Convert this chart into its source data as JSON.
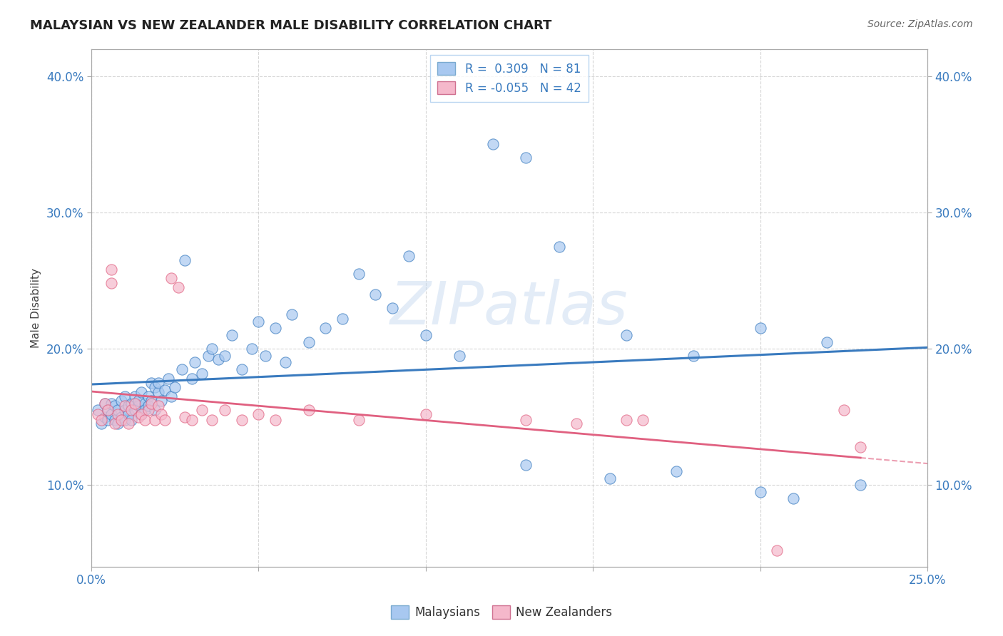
{
  "title": "MALAYSIAN VS NEW ZEALANDER MALE DISABILITY CORRELATION CHART",
  "source": "Source: ZipAtlas.com",
  "ylabel": "Male Disability",
  "xlim": [
    0.0,
    0.25
  ],
  "ylim": [
    0.04,
    0.42
  ],
  "ytick_values": [
    0.1,
    0.2,
    0.3,
    0.4
  ],
  "r_malaysian": 0.309,
  "n_malaysian": 81,
  "r_nz": -0.055,
  "n_nz": 42,
  "color_malaysian": "#a8c8f0",
  "color_nz": "#f5b8cb",
  "line_color_malaysian": "#3a7bbf",
  "line_color_nz": "#e06080",
  "background_color": "#ffffff",
  "watermark": "ZIPatlas",
  "malaysian_x": [
    0.002,
    0.003,
    0.004,
    0.004,
    0.005,
    0.005,
    0.006,
    0.006,
    0.007,
    0.007,
    0.008,
    0.008,
    0.009,
    0.009,
    0.01,
    0.01,
    0.01,
    0.011,
    0.011,
    0.012,
    0.012,
    0.013,
    0.013,
    0.014,
    0.014,
    0.015,
    0.015,
    0.016,
    0.016,
    0.017,
    0.017,
    0.018,
    0.018,
    0.019,
    0.019,
    0.02,
    0.02,
    0.021,
    0.022,
    0.023,
    0.024,
    0.025,
    0.027,
    0.028,
    0.03,
    0.031,
    0.033,
    0.035,
    0.036,
    0.038,
    0.04,
    0.042,
    0.045,
    0.048,
    0.05,
    0.052,
    0.055,
    0.058,
    0.06,
    0.065,
    0.07,
    0.075,
    0.08,
    0.085,
    0.09,
    0.095,
    0.1,
    0.11,
    0.12,
    0.13,
    0.14,
    0.16,
    0.18,
    0.2,
    0.22,
    0.2,
    0.21,
    0.23,
    0.13,
    0.155,
    0.175
  ],
  "malaysian_y": [
    0.155,
    0.145,
    0.16,
    0.15,
    0.155,
    0.148,
    0.152,
    0.16,
    0.148,
    0.158,
    0.145,
    0.155,
    0.162,
    0.15,
    0.155,
    0.148,
    0.165,
    0.158,
    0.152,
    0.16,
    0.148,
    0.165,
    0.155,
    0.158,
    0.162,
    0.152,
    0.168,
    0.16,
    0.155,
    0.165,
    0.158,
    0.175,
    0.162,
    0.172,
    0.155,
    0.168,
    0.175,
    0.162,
    0.17,
    0.178,
    0.165,
    0.172,
    0.185,
    0.265,
    0.178,
    0.19,
    0.182,
    0.195,
    0.2,
    0.192,
    0.195,
    0.21,
    0.185,
    0.2,
    0.22,
    0.195,
    0.215,
    0.19,
    0.225,
    0.205,
    0.215,
    0.222,
    0.255,
    0.24,
    0.23,
    0.268,
    0.21,
    0.195,
    0.35,
    0.34,
    0.275,
    0.21,
    0.195,
    0.215,
    0.205,
    0.095,
    0.09,
    0.1,
    0.115,
    0.105,
    0.11
  ],
  "nz_x": [
    0.002,
    0.003,
    0.004,
    0.005,
    0.006,
    0.006,
    0.007,
    0.008,
    0.009,
    0.01,
    0.011,
    0.012,
    0.013,
    0.014,
    0.015,
    0.016,
    0.017,
    0.018,
    0.019,
    0.02,
    0.021,
    0.022,
    0.024,
    0.026,
    0.028,
    0.03,
    0.033,
    0.036,
    0.04,
    0.045,
    0.05,
    0.055,
    0.065,
    0.08,
    0.1,
    0.13,
    0.145,
    0.16,
    0.165,
    0.205,
    0.225,
    0.23
  ],
  "nz_y": [
    0.152,
    0.148,
    0.16,
    0.155,
    0.258,
    0.248,
    0.145,
    0.152,
    0.148,
    0.158,
    0.145,
    0.155,
    0.16,
    0.15,
    0.152,
    0.148,
    0.155,
    0.16,
    0.148,
    0.158,
    0.152,
    0.148,
    0.252,
    0.245,
    0.15,
    0.148,
    0.155,
    0.148,
    0.155,
    0.148,
    0.152,
    0.148,
    0.155,
    0.148,
    0.152,
    0.148,
    0.145,
    0.148,
    0.148,
    0.052,
    0.155,
    0.128
  ]
}
